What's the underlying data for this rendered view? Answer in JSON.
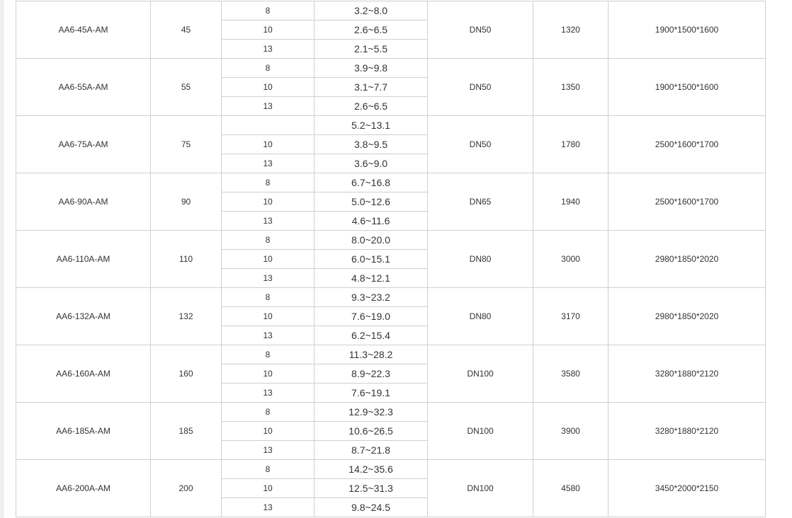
{
  "rows": [
    {
      "model": "AA6-45A-AM",
      "power": "45",
      "pressures": [
        "8",
        "10",
        "13"
      ],
      "flows": [
        "3.2~8.0",
        "2.6~6.5",
        "2.1~5.5"
      ],
      "outlet": "DN50",
      "weight": "1320",
      "dimensions": "1900*1500*1600"
    },
    {
      "model": "AA6-55A-AM",
      "power": "55",
      "pressures": [
        "8",
        "10",
        "13"
      ],
      "flows": [
        "3.9~9.8",
        "3.1~7.7",
        "2.6~6.5"
      ],
      "outlet": "DN50",
      "weight": "1350",
      "dimensions": "1900*1500*1600"
    },
    {
      "model": "AA6-75A-AM",
      "power": "75",
      "pressures": [
        "",
        "10",
        "13"
      ],
      "flows": [
        "5.2~13.1",
        "3.8~9.5",
        "3.6~9.0"
      ],
      "outlet": "DN50",
      "weight": "1780",
      "dimensions": "2500*1600*1700"
    },
    {
      "model": "AA6-90A-AM",
      "power": "90",
      "pressures": [
        "8",
        "10",
        "13"
      ],
      "flows": [
        "6.7~16.8",
        "5.0~12.6",
        "4.6~11.6"
      ],
      "outlet": "DN65",
      "weight": "1940",
      "dimensions": "2500*1600*1700"
    },
    {
      "model": "AA6-110A-AM",
      "power": "110",
      "pressures": [
        "8",
        "10",
        "13"
      ],
      "flows": [
        "8.0~20.0",
        "6.0~15.1",
        "4.8~12.1"
      ],
      "outlet": "DN80",
      "weight": "3000",
      "dimensions": "2980*1850*2020"
    },
    {
      "model": "AA6-132A-AM",
      "power": "132",
      "pressures": [
        "8",
        "10",
        "13"
      ],
      "flows": [
        "9.3~23.2",
        "7.6~19.0",
        "6.2~15.4"
      ],
      "outlet": "DN80",
      "weight": "3170",
      "dimensions": "2980*1850*2020"
    },
    {
      "model": "AA6-160A-AM",
      "power": "160",
      "pressures": [
        "8",
        "10",
        "13"
      ],
      "flows": [
        "11.3~28.2",
        "8.9~22.3",
        "7.6~19.1"
      ],
      "outlet": "DN100",
      "weight": "3580",
      "dimensions": "3280*1880*2120"
    },
    {
      "model": "AA6-185A-AM",
      "power": "185",
      "pressures": [
        "8",
        "10",
        "13"
      ],
      "flows": [
        "12.9~32.3",
        "10.6~26.5",
        "8.7~21.8"
      ],
      "outlet": "DN100",
      "weight": "3900",
      "dimensions": "3280*1880*2120"
    },
    {
      "model": "AA6-200A-AM",
      "power": "200",
      "pressures": [
        "8",
        "10",
        "13"
      ],
      "flows": [
        "14.2~35.6",
        "12.5~31.3",
        "9.8~24.5"
      ],
      "outlet": "DN100",
      "weight": "4580",
      "dimensions": "3450*2000*2150"
    }
  ]
}
